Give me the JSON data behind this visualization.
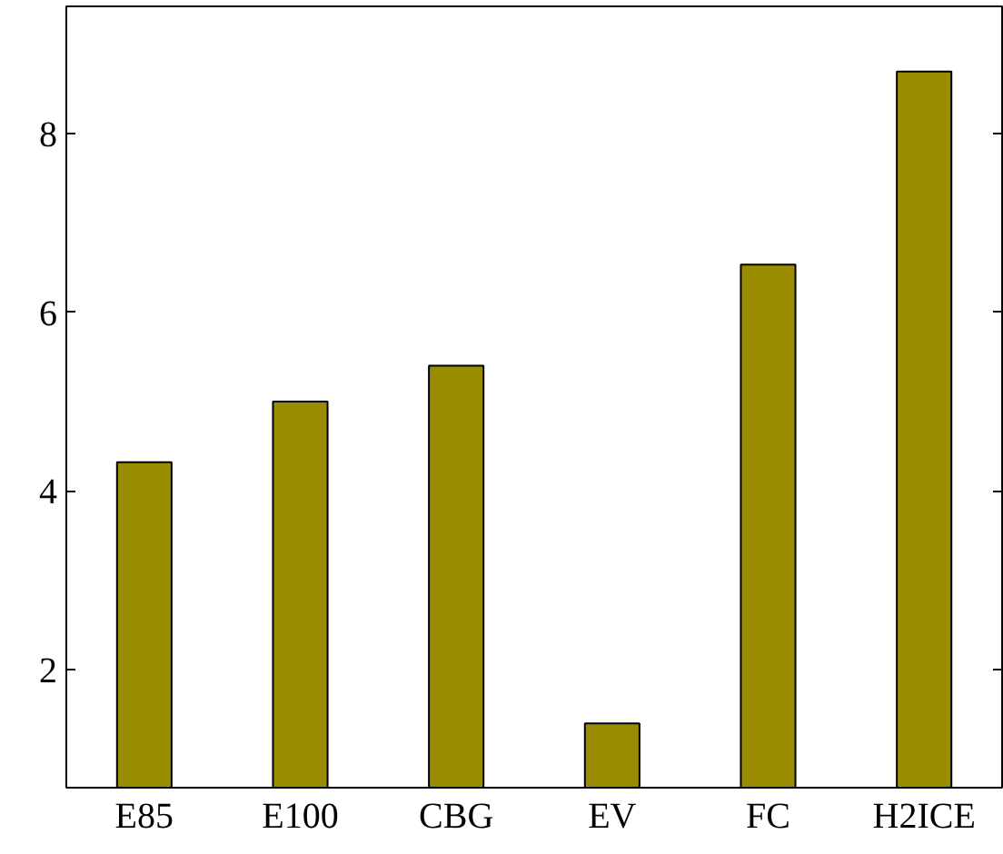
{
  "chart_data": {
    "type": "bar",
    "categories": [
      "E85",
      "E100",
      "CBG",
      "EV",
      "FC",
      "H2ICE"
    ],
    "values": [
      4.32,
      5.0,
      5.4,
      1.4,
      6.53,
      8.69
    ],
    "color": "#998c00",
    "ylim": [
      0.68,
      9.42
    ],
    "yticks": [
      2,
      4,
      6,
      8
    ],
    "grid": false
  }
}
